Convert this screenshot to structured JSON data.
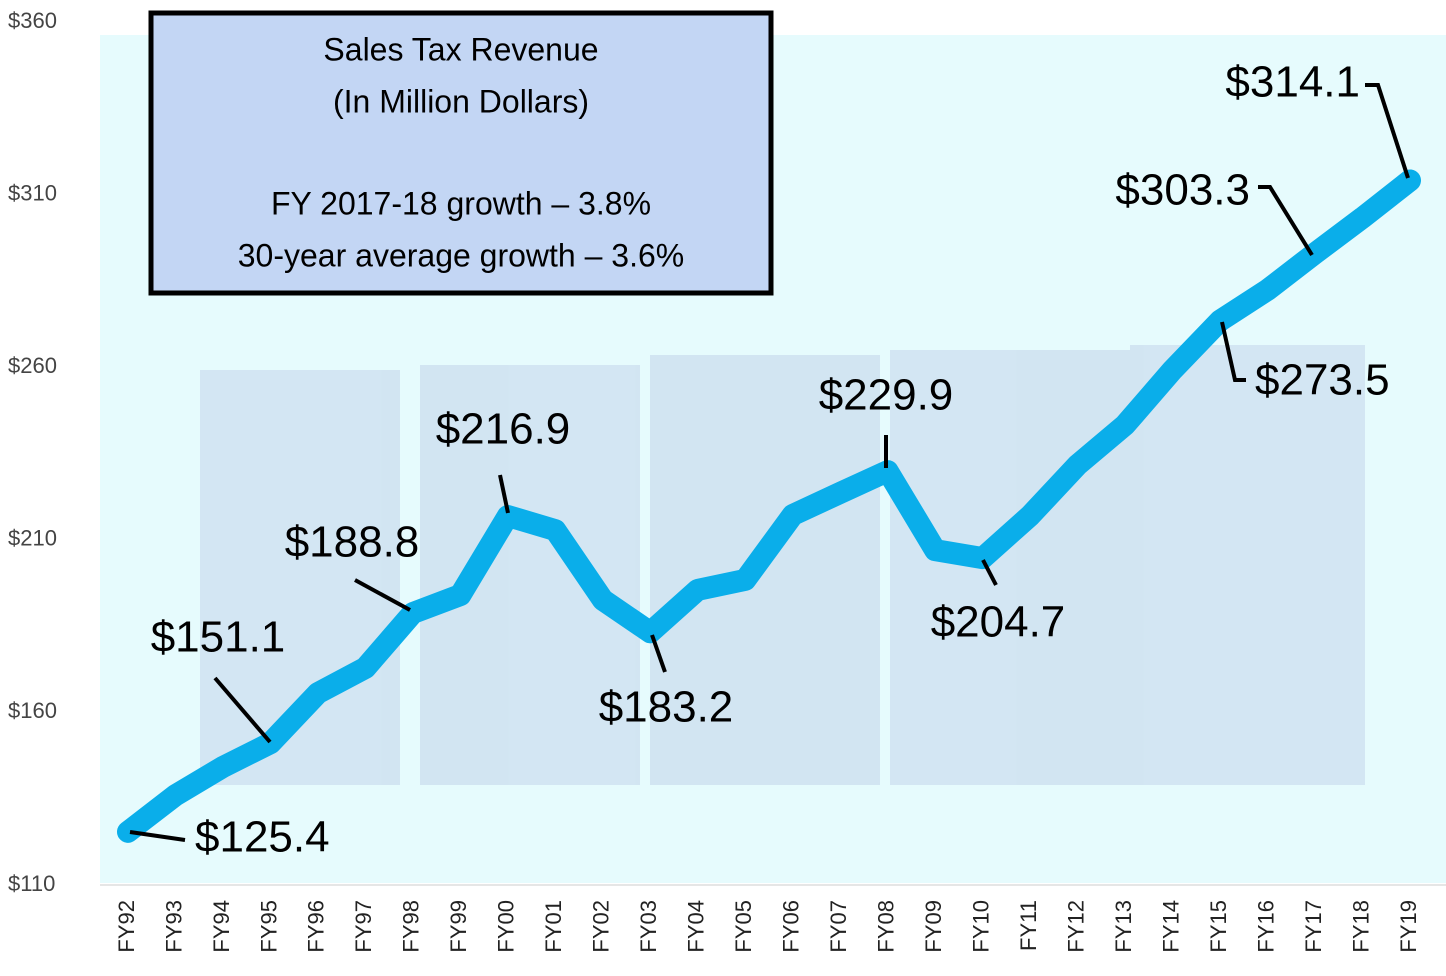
{
  "chart_data": {
    "type": "line",
    "title": "Sales Tax Revenue",
    "subtitle": "(In Million Dollars)",
    "annotations": [
      "FY 2017-18 growth – 3.8%",
      "30-year average growth – 3.6%"
    ],
    "categories": [
      "FY92",
      "FY93",
      "FY94",
      "FY95",
      "FY96",
      "FY97",
      "FY98",
      "FY99",
      "FY00",
      "FY01",
      "FY02",
      "FY03",
      "FY04",
      "FY05",
      "FY06",
      "FY07",
      "FY08",
      "FY09",
      "FY10",
      "FY11",
      "FY12",
      "FY13",
      "FY14",
      "FY15",
      "FY16",
      "FY17",
      "FY18",
      "FY19"
    ],
    "series": [
      {
        "name": "Sales Tax Revenue",
        "color": "#0aaeea",
        "values": [
          125.4,
          136,
          144.2,
          151.1,
          165.6,
          172.9,
          188.8,
          194,
          216.9,
          212.8,
          192.6,
          183.2,
          195.5,
          198.4,
          217.2,
          223.6,
          229.9,
          207,
          204.7,
          217,
          231.7,
          243.3,
          259.2,
          273.5,
          282.4,
          293,
          303.3,
          314.1
        ],
        "value_labels": [
          "$125.4",
          null,
          null,
          "$151.1",
          null,
          null,
          "$188.8",
          null,
          "$216.9",
          null,
          null,
          "$183.2",
          null,
          null,
          null,
          null,
          "$229.9",
          null,
          "$204.7",
          null,
          null,
          null,
          null,
          "$273.5",
          null,
          null,
          "$303.3",
          "$314.1"
        ]
      }
    ],
    "ylim": [
      110,
      360
    ],
    "yticks": [
      {
        "value": 110,
        "label": "$110"
      },
      {
        "value": 160,
        "label": "$160"
      },
      {
        "value": 210,
        "label": "$210"
      },
      {
        "value": 260,
        "label": "$260"
      },
      {
        "value": 310,
        "label": "$310"
      },
      {
        "value": 360,
        "label": "$360"
      }
    ]
  }
}
